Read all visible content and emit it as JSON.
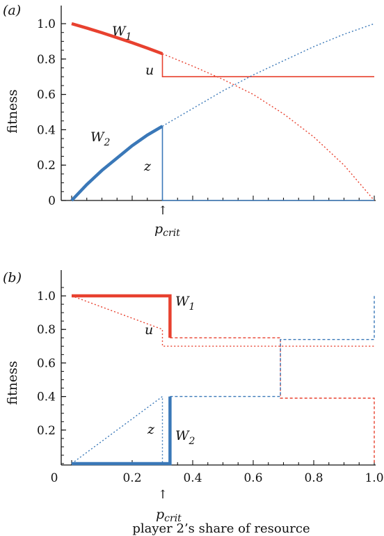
{
  "figure": {
    "xlabel": "player 2’s share of resource"
  },
  "colors": {
    "red": "#e8412f",
    "blue": "#3a78b8",
    "axis": "#111111"
  },
  "chart_data": [
    {
      "type": "line",
      "panel_label": "(a)",
      "ylabel": "fitness",
      "xlim": [
        0,
        1
      ],
      "ylim": [
        0,
        1
      ],
      "x_ticks": [],
      "y_ticks": [
        "0",
        "0.2",
        "0.4",
        "0.6",
        "0.8",
        "1.0"
      ],
      "y_tick_values": [
        0,
        0.2,
        0.4,
        0.6,
        0.8,
        1.0
      ],
      "marker": {
        "label": "p",
        "sub": "crit",
        "arrow": "↑",
        "x": 0.3
      },
      "annotations": {
        "W1": "W",
        "W1_sub": "1",
        "W2": "W",
        "W2_sub": "2",
        "u": "u",
        "z": "z"
      },
      "series": [
        {
          "name": "W1",
          "color": "red",
          "style": "thick",
          "x": [
            0,
            0.05,
            0.1,
            0.15,
            0.2,
            0.25,
            0.3
          ],
          "y": [
            1.0,
            0.975,
            0.949,
            0.921,
            0.892,
            0.862,
            0.83
          ]
        },
        {
          "name": "W1",
          "color": "red",
          "style": "dotted",
          "x": [
            0.3,
            0.4,
            0.5,
            0.6,
            0.7,
            0.8,
            0.9,
            1.0
          ],
          "y": [
            0.83,
            0.76,
            0.685,
            0.6,
            0.49,
            0.36,
            0.2,
            0.0
          ]
        },
        {
          "name": "W1",
          "color": "red",
          "style": "thin",
          "x": [
            0.3,
            0.3,
            1.0
          ],
          "y": [
            0.83,
            0.7,
            0.7
          ]
        },
        {
          "name": "W2",
          "color": "blue",
          "style": "thick",
          "x": [
            0,
            0.05,
            0.1,
            0.15,
            0.2,
            0.25,
            0.3
          ],
          "y": [
            0.0,
            0.09,
            0.17,
            0.24,
            0.31,
            0.37,
            0.42
          ]
        },
        {
          "name": "W2",
          "color": "blue",
          "style": "dotted",
          "x": [
            0.3,
            0.4,
            0.5,
            0.6,
            0.7,
            0.8,
            0.9,
            1.0
          ],
          "y": [
            0.42,
            0.52,
            0.62,
            0.71,
            0.79,
            0.87,
            0.94,
            1.0
          ]
        },
        {
          "name": "W2",
          "color": "blue",
          "style": "thin",
          "x": [
            0.3,
            0.3,
            1.0
          ],
          "y": [
            0.42,
            0.0,
            0.0
          ]
        }
      ]
    },
    {
      "type": "line",
      "panel_label": "(b)",
      "ylabel": "fitness",
      "xlim": [
        0,
        1
      ],
      "ylim": [
        0,
        1.05
      ],
      "x_ticks": [
        "0",
        "0.2",
        "0.4",
        "0.6",
        "0.8",
        "1.0"
      ],
      "x_tick_values": [
        0,
        0.2,
        0.4,
        0.6,
        0.8,
        1.0
      ],
      "y_ticks": [
        "0.2",
        "0.4",
        "0.6",
        "0.8",
        "1.0"
      ],
      "y_tick_values": [
        0.2,
        0.4,
        0.6,
        0.8,
        1.0
      ],
      "marker": {
        "label": "p",
        "sub": "crit",
        "arrow": "↑",
        "x": 0.325
      },
      "annotations": {
        "W1": "W",
        "W1_sub": "1",
        "W2": "W",
        "W2_sub": "2",
        "u": "u",
        "z": "z"
      },
      "series": [
        {
          "name": "W1",
          "color": "red",
          "style": "thick",
          "x": [
            0,
            0.325,
            0.325
          ],
          "y": [
            1.0,
            1.0,
            0.75
          ]
        },
        {
          "name": "W1",
          "color": "red",
          "style": "dotted",
          "x": [
            0,
            0.3,
            0.3,
            1.0
          ],
          "y": [
            1.0,
            0.8,
            0.7,
            0.7
          ]
        },
        {
          "name": "W1",
          "color": "red",
          "style": "dashed",
          "x": [
            0.325,
            0.69,
            0.69,
            1.0,
            1.0
          ],
          "y": [
            0.75,
            0.75,
            0.39,
            0.39,
            0.0
          ]
        },
        {
          "name": "W2",
          "color": "blue",
          "style": "thick",
          "x": [
            0,
            0.325,
            0.325
          ],
          "y": [
            0.0,
            0.0,
            0.4
          ]
        },
        {
          "name": "W2",
          "color": "blue",
          "style": "dotted",
          "x": [
            0,
            0.3,
            0.3
          ],
          "y": [
            0.0,
            0.4,
            0.0
          ]
        },
        {
          "name": "W2",
          "color": "blue",
          "style": "dashed",
          "x": [
            0.325,
            0.69,
            0.69,
            1.0,
            1.0
          ],
          "y": [
            0.4,
            0.4,
            0.74,
            0.74,
            1.0
          ]
        }
      ]
    }
  ]
}
